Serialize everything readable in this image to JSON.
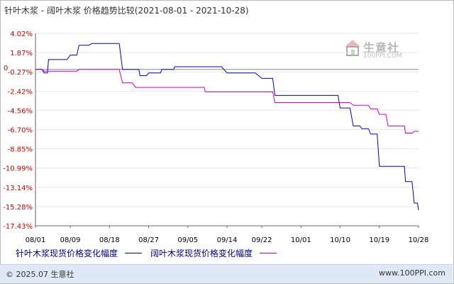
{
  "chart_data": {
    "type": "line",
    "title": "针叶木浆 - 阔叶木浆 价格趋势比较(2021-08-01 - 2021-10-28)",
    "xlabel": "",
    "ylabel": "",
    "x_ticks": [
      "08/01",
      "08/09",
      "08/18",
      "08/27",
      "09/05",
      "09/14",
      "09/22",
      "10/01",
      "10/10",
      "10/19",
      "10/28"
    ],
    "y_ticks": [
      "4.02%",
      "1.87%",
      "-0.27%",
      "-2.42%",
      "-4.56%",
      "-6.70%",
      "-8.85%",
      "-10.99%",
      "-13.14%",
      "-15.28%",
      "-17.43%"
    ],
    "zero_label": "0",
    "ylim": [
      -17.43,
      4.02
    ],
    "x": [
      "08/01",
      "08/03",
      "08/04",
      "08/06",
      "08/09",
      "08/11",
      "08/14",
      "08/18",
      "08/21",
      "08/24",
      "08/25",
      "08/27",
      "08/29",
      "08/30",
      "09/01",
      "09/02",
      "09/05",
      "09/08",
      "09/09",
      "09/14",
      "09/16",
      "09/22",
      "09/23",
      "09/25",
      "09/26",
      "09/29",
      "10/01",
      "10/04",
      "10/08",
      "10/10",
      "10/13",
      "10/15",
      "10/17",
      "10/19",
      "10/21",
      "10/24",
      "10/25",
      "10/27",
      "10/28"
    ],
    "series": [
      {
        "name": "针叶木浆现货价格变化幅度",
        "color": "#0000cc",
        "values": [
          0.0,
          -0.4,
          1.1,
          1.1,
          1.6,
          2.7,
          2.9,
          2.9,
          0.0,
          0.0,
          -0.7,
          -0.4,
          -0.4,
          0.0,
          0.0,
          0.3,
          0.3,
          0.3,
          0.3,
          -0.4,
          -0.4,
          -1.0,
          -1.0,
          -2.9,
          -2.9,
          -2.9,
          -2.9,
          -2.9,
          -2.9,
          -4.3,
          -6.3,
          -6.6,
          -7.2,
          -10.8,
          -10.8,
          -10.8,
          -12.5,
          -14.9,
          -15.7
        ]
      },
      {
        "name": "阔叶木浆现货价格变化幅度",
        "color": "#cc00cc",
        "values": [
          0.0,
          -0.2,
          -0.2,
          -0.2,
          -0.2,
          0.0,
          0.0,
          0.0,
          -1.5,
          -2.0,
          -2.0,
          -2.0,
          -2.0,
          -2.0,
          -2.0,
          -2.0,
          -2.0,
          -2.0,
          -2.5,
          -2.5,
          -2.5,
          -2.5,
          -2.5,
          -3.7,
          -3.7,
          -3.7,
          -3.7,
          -3.7,
          -3.7,
          -3.7,
          -4.0,
          -4.0,
          -4.4,
          -5.0,
          -6.3,
          -6.3,
          -7.1,
          -6.9,
          -6.9
        ]
      }
    ],
    "grid": "horizontal",
    "legend": "bottom"
  },
  "footer": {
    "copyright": "© 2025.07 生意社",
    "url": "www.100PPI.com"
  },
  "watermark": {
    "name": "生意社",
    "url": "100PPI.COM"
  }
}
